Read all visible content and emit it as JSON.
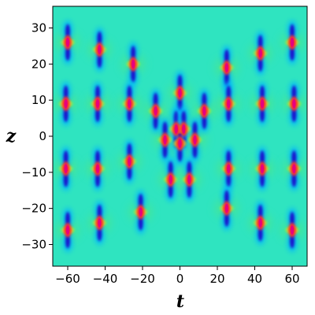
{
  "chart_data": {
    "type": "heatmap",
    "title": "",
    "xlabel": "t",
    "ylabel": "z",
    "xlim": [
      -68,
      68
    ],
    "ylim": [
      -36,
      36
    ],
    "x_ticks": [
      -60,
      -40,
      -20,
      0,
      20,
      40,
      60
    ],
    "y_ticks": [
      -30,
      -20,
      -10,
      0,
      10,
      20,
      30
    ],
    "x_tick_labels": [
      "−60",
      "−40",
      "−20",
      "0",
      "20",
      "40",
      "60"
    ],
    "y_tick_labels": [
      "−30",
      "−20",
      "−10",
      "0",
      "10",
      "20",
      "30"
    ],
    "grid": false,
    "colormap": [
      "#1a00c8",
      "#00b4ff",
      "#2fe4c0",
      "#5fe66a",
      "#ffe400",
      "#ff2a2a",
      "#e6007e"
    ],
    "background_color": "#2fe4c0",
    "peaks": [
      {
        "t": -60,
        "z": 26
      },
      {
        "t": -43,
        "z": 24
      },
      {
        "t": -25,
        "z": 20
      },
      {
        "t": -61,
        "z": 9
      },
      {
        "t": -44,
        "z": 9
      },
      {
        "t": -27,
        "z": 9
      },
      {
        "t": -13,
        "z": 7
      },
      {
        "t": 0,
        "z": 12
      },
      {
        "t": 13,
        "z": 7
      },
      {
        "t": -2,
        "z": 2
      },
      {
        "t": 2,
        "z": 2
      },
      {
        "t": -8,
        "z": -1
      },
      {
        "t": 0,
        "z": -2
      },
      {
        "t": 8,
        "z": -1
      },
      {
        "t": -5,
        "z": -12
      },
      {
        "t": 5,
        "z": -12
      },
      {
        "t": -61,
        "z": -9
      },
      {
        "t": -44,
        "z": -9
      },
      {
        "t": -27,
        "z": -7
      },
      {
        "t": -21,
        "z": -21
      },
      {
        "t": -60,
        "z": -26
      },
      {
        "t": -43,
        "z": -24
      },
      {
        "t": 25,
        "z": 19
      },
      {
        "t": 43,
        "z": 23
      },
      {
        "t": 60,
        "z": 26
      },
      {
        "t": 26,
        "z": 9
      },
      {
        "t": 44,
        "z": 9
      },
      {
        "t": 61,
        "z": 9
      },
      {
        "t": 26,
        "z": -9
      },
      {
        "t": 44,
        "z": -9
      },
      {
        "t": 61,
        "z": -9
      },
      {
        "t": 25,
        "z": -20
      },
      {
        "t": 43,
        "z": -24
      },
      {
        "t": 60,
        "z": -26
      }
    ]
  }
}
